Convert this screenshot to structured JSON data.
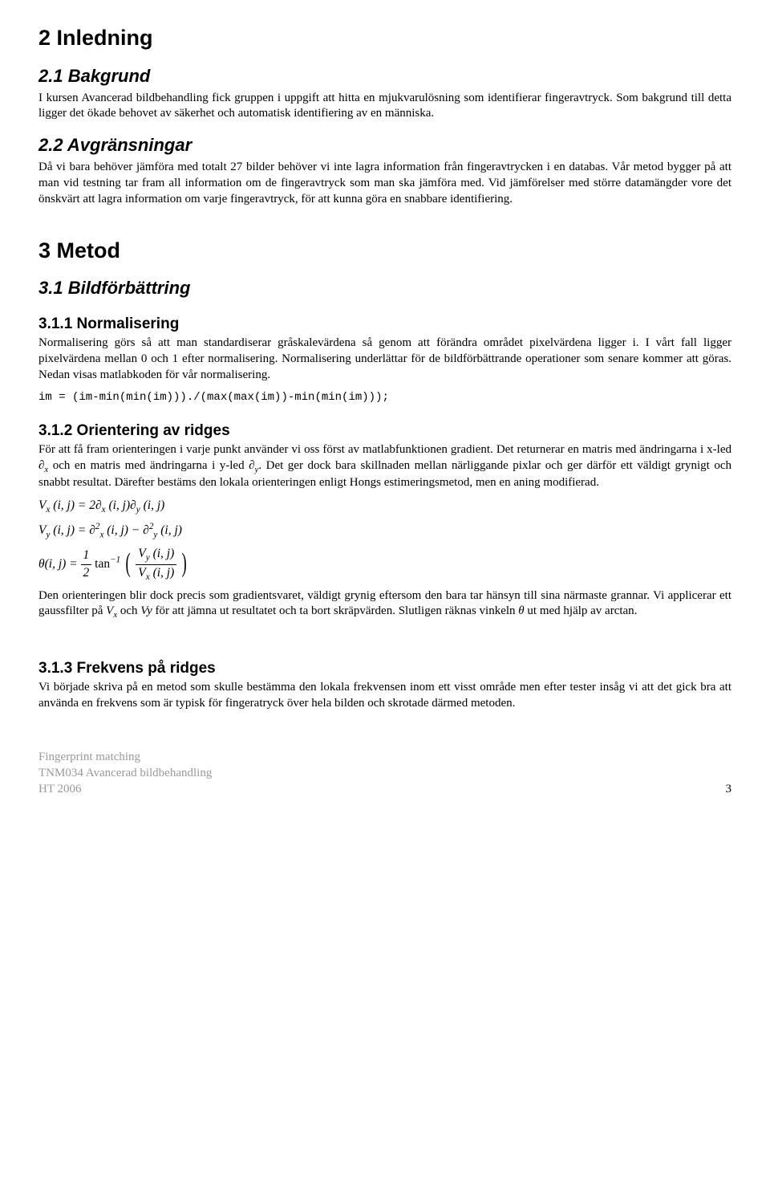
{
  "s2": {
    "title": "2   Inledning",
    "s21_title": "2.1   Bakgrund",
    "s21_p": "I kursen Avancerad bildbehandling fick gruppen i uppgift att hitta en mjukvarulösning som identifierar fingeravtryck. Som bakgrund till detta ligger det ökade behovet av säkerhet och automatisk identifiering av en människa.",
    "s22_title": "2.2   Avgränsningar",
    "s22_p": "Då vi bara behöver jämföra med totalt 27 bilder behöver vi inte lagra information från fingeravtrycken i en databas. Vår metod bygger på att man vid testning tar fram all information om de fingeravtryck som man ska jämföra med. Vid jämförelser med större datamängder vore det önskvärt att lagra information om varje fingeravtryck, för att kunna göra en snabbare identifiering."
  },
  "s3": {
    "title": "3   Metod",
    "s31_title": "3.1   Bildförbättring",
    "s311_title": "3.1.1  Normalisering",
    "s311_p": "Normalisering görs så att man standardiserar gråskalevärdena så genom att förändra området pixelvärdena ligger i. I vårt fall ligger pixelvärdena mellan 0 och 1 efter normalisering. Normalisering underlättar för de bildförbättrande operationer som senare kommer att göras. Nedan visas matlabkoden för vår normalisering.",
    "code": "im = (im-min(min(im)))./(max(max(im))-min(min(im)));",
    "s312_title": "3.1.2  Orientering av ridges",
    "s312_p1a": "För att få fram orienteringen i varje punkt använder vi oss först av matlabfunktionen gradient. Det returnerar en matris med ändringarna i x-led ",
    "s312_p1_dx": "∂",
    "s312_p1b": " och en matris med ändringarna i y-led ",
    "s312_p1_dy": "∂",
    "s312_p1c": ". Det ger dock bara skillnaden mellan närliggande pixlar och ger därför ett väldigt grynigt och snabbt resultat. Därefter bestäms den lokala orienteringen enligt Hongs estimeringsmetod, men en aning modifierad.",
    "s312_p2a": "Den orienteringen blir dock precis som gradientsvaret, väldigt grynig eftersom den bara tar hänsyn till sina närmaste grannar. Vi applicerar ett gaussfilter på ",
    "s312_p2b": " och ",
    "s312_p2c": " för att jämna ut resultatet och ta bort skräpvärden. Slutligen räknas vinkeln ",
    "s312_p2d": " ut med hjälp av arctan.",
    "s313_title": "3.1.3  Frekvens på ridges",
    "s313_p": "Vi började skriva på en metod som skulle bestämma den lokala frekvensen inom ett visst område men efter tester insåg vi att det gick bra att använda en frekvens som är typisk för fingeratryck över hela bilden och skrotade därmed metoden."
  },
  "footer": {
    "l1": "Fingerprint matching",
    "l2": "TNM034 Avancerad bildbehandling",
    "l3": "HT 2006",
    "page": "3"
  }
}
